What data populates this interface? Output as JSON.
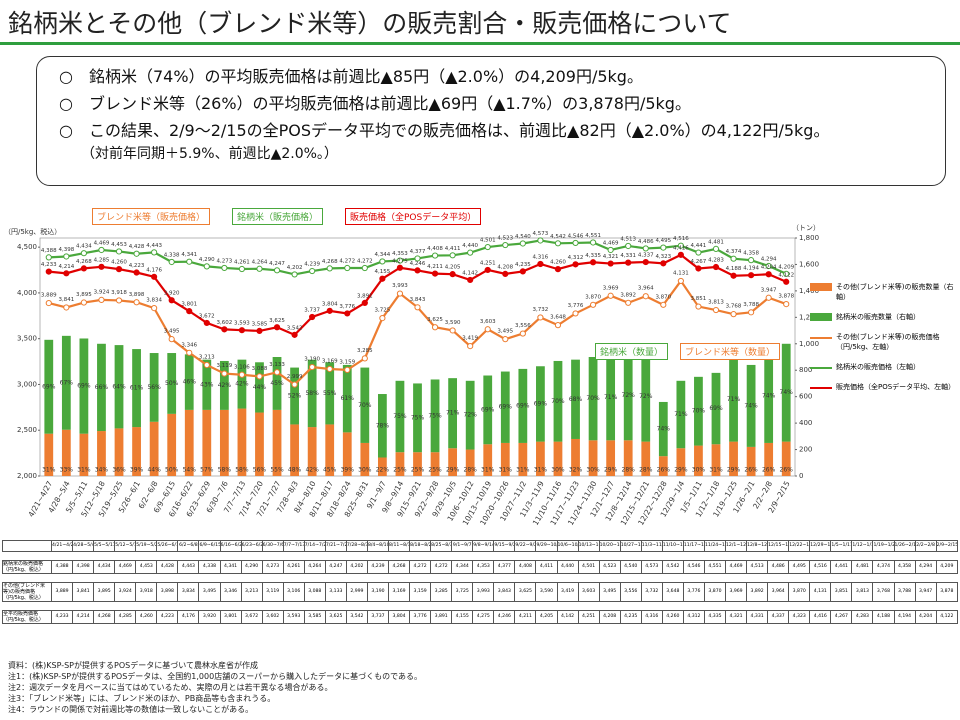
{
  "header": {
    "title": "銘柄米とその他（ブレンド米等）の販売割合・販売価格について"
  },
  "bullets": [
    "○　銘柄米（74%）の平均販売価格は前週比▲85円（▲2.0%）の4,209円/5kg。",
    "○　ブレンド米等（26%）の平均販売価格は前週比▲69円（▲1.7%）の3,878円/5kg。",
    "○　この結果、2/9～2/15の全POSデータ平均での販売価格は、前週比▲82円（▲2.0%）の4,122円/5kg。"
  ],
  "bullet_sub": "（対前年同期＋5.9%、前週比▲2.0%。）",
  "chart_data": {
    "type": "combo",
    "y_label": "（円/5kg、税込）",
    "y2_label": "（トン）",
    "categories": [
      "4/21~4/27",
      "4/28~5/4",
      "5/5~5/11",
      "5/12~5/18",
      "5/19~5/25",
      "5/26~6/1",
      "6/2~6/8",
      "6/9~6/15",
      "6/16~6/22",
      "6/23~6/29",
      "6/30~7/6",
      "7/7~7/13",
      "7/14~7/20",
      "7/21~7/27",
      "7/28~8/3",
      "8/4~8/10",
      "8/11~8/17",
      "8/18~8/24",
      "8/25~8/31",
      "9/1~9/7",
      "9/8~9/14",
      "9/15~9/21",
      "9/22~9/28",
      "9/29~10/5",
      "10/6~10/12",
      "10/13~10/19",
      "10/20~10/26",
      "10/27~11/2",
      "11/3~11/9",
      "11/10~11/16",
      "11/17~11/23",
      "11/24~11/30",
      "12/1~12/7",
      "12/8~12/14",
      "12/15~12/21",
      "12/22~12/28",
      "12/29~1/4",
      "1/5~1/11",
      "1/12~1/18",
      "1/19~1/25",
      "1/26~2/1",
      "2/2~2/8",
      "2/9~2/15"
    ],
    "ylim": [
      2000,
      4600
    ],
    "yticks": [
      {
        "value": 2000,
        "label": "2,000"
      },
      {
        "value": 2500,
        "label": "2,500"
      },
      {
        "value": 3000,
        "label": "3,000"
      },
      {
        "value": 3500,
        "label": "3,500"
      },
      {
        "value": 4000,
        "label": "4,000"
      },
      {
        "value": 4500,
        "label": "4,500"
      }
    ],
    "y2lim": [
      0,
      1800
    ],
    "y2ticks": [
      0,
      200,
      400,
      600,
      800,
      {
        "value": 1000,
        "label": "1,000"
      },
      {
        "value": 1200,
        "label": "1,200"
      },
      {
        "value": 1400,
        "label": "1,400"
      },
      {
        "value": 1600,
        "label": "1,600"
      },
      {
        "value": 1800,
        "label": "1,800"
      }
    ],
    "series": [
      {
        "name": "その他(ブレンド米等)の販売数量（右軸）",
        "type": "bar",
        "axis": "y2",
        "color": "#ed7d31",
        "values": [
          320,
          350,
          320,
          340,
          360,
          370,
          410,
          470,
          500,
          500,
          500,
          510,
          480,
          500,
          390,
          370,
          390,
          330,
          250,
          140,
          180,
          180,
          180,
          210,
          200,
          240,
          250,
          250,
          260,
          260,
          280,
          270,
          270,
          270,
          260,
          150,
          210,
          230,
          240,
          260,
          220,
          250,
          260
        ],
        "share_labels": [
          "31%",
          "33%",
          "31%",
          "34%",
          "36%",
          "39%",
          "44%",
          "50%",
          "54%",
          "57%",
          "58%",
          "58%",
          "56%",
          "55%",
          "48%",
          "42%",
          "45%",
          "39%",
          "30%",
          "22%",
          "25%",
          "25%",
          "25%",
          "29%",
          "28%",
          "31%",
          "31%",
          "31%",
          "31%",
          "30%",
          "32%",
          "30%",
          "29%",
          "28%",
          "28%",
          "26%",
          "29%",
          "30%",
          "31%",
          "29%",
          "26%",
          "26%",
          "26%"
        ]
      },
      {
        "name": "銘柄米の販売数量（右軸）",
        "type": "bar",
        "axis": "y2",
        "color": "#4aa83c",
        "values": [
          710,
          710,
          720,
          660,
          630,
          590,
          520,
          460,
          420,
          380,
          370,
          370,
          380,
          400,
          430,
          510,
          470,
          510,
          570,
          480,
          540,
          520,
          550,
          530,
          520,
          520,
          540,
          560,
          570,
          610,
          600,
          630,
          650,
          680,
          680,
          410,
          510,
          520,
          540,
          640,
          620,
          710,
          740
        ],
        "share_labels": [
          "69%",
          "67%",
          "69%",
          "66%",
          "64%",
          "61%",
          "56%",
          "50%",
          "46%",
          "43%",
          "42%",
          "42%",
          "44%",
          "45%",
          "52%",
          "58%",
          "55%",
          "61%",
          "70%",
          "78%",
          "75%",
          "75%",
          "75%",
          "71%",
          "72%",
          "69%",
          "69%",
          "69%",
          "69%",
          "70%",
          "68%",
          "70%",
          "71%",
          "72%",
          "72%",
          "74%",
          "71%",
          "70%",
          "69%",
          "71%",
          "74%",
          "74%",
          "74%"
        ]
      },
      {
        "name": "その他(ブレンド米等)の販売価格（円/5kg、左軸）",
        "type": "line",
        "color": "#ed7d31",
        "values": [
          3889,
          3841,
          3895,
          3924,
          3918,
          3898,
          3834,
          3495,
          3346,
          3213,
          3119,
          3106,
          3088,
          3133,
          2999,
          3190,
          3169,
          3159,
          3285,
          3725,
          3993,
          3843,
          3625,
          3590,
          3419,
          3603,
          3495,
          3556,
          3732,
          3648,
          3776,
          3870,
          3969,
          3892,
          3964,
          3870,
          4131,
          3851,
          3813,
          3768,
          3788,
          3947,
          3878
        ],
        "value_labels": [
          "3,889",
          "3,841",
          "3,895",
          "3,924",
          "3,918",
          "3,898",
          "3,834",
          "3,495",
          "3,346",
          "3,213",
          "3,119",
          "3,106",
          "3,088",
          "3,133",
          "2,999",
          "3,190",
          "3,169",
          "3,159",
          "3,285",
          "3,725",
          "3,993",
          "3,843",
          "3,625",
          "3,590",
          "3,419",
          "3,603",
          "3,495",
          "3,556",
          "3,732",
          "3,648",
          "3,776",
          "3,870",
          "3,969",
          "3,892",
          "3,964",
          "3,870",
          "4,131",
          "3,851",
          "3,813",
          "3,768",
          "3,788",
          "3,947",
          "3,878"
        ]
      },
      {
        "name": "銘柄米の販売価格（左軸）",
        "type": "line",
        "color": "#4aa83c",
        "values": [
          4388,
          4398,
          4434,
          4469,
          4453,
          4428,
          4443,
          4338,
          4341,
          4290,
          4273,
          4261,
          4264,
          4247,
          4202,
          4239,
          4268,
          4272,
          4272,
          4344,
          4353,
          4377,
          4408,
          4411,
          4440,
          4501,
          4523,
          4540,
          4573,
          4542,
          4546,
          4551,
          4469,
          4513,
          4486,
          4495,
          4516,
          4441,
          4481,
          4374,
          4358,
          4294,
          4209
        ],
        "value_labels": [
          "4,388",
          "4,398",
          "4,434",
          "4,469",
          "4,453",
          "4,428",
          "4,443",
          "4,338",
          "4,341",
          "4,290",
          "4,273",
          "4,261",
          "4,264",
          "4,247",
          "4,202",
          "4,239",
          "4,268",
          "4,272",
          "4,272",
          "4,344",
          "4,353",
          "4,377",
          "4,408",
          "4,411",
          "4,440",
          "4,501",
          "4,523",
          "4,540",
          "4,573",
          "4,542",
          "4,546",
          "4,551",
          "4,469",
          "4,513",
          "4,486",
          "4,495",
          "4,516",
          "4,441",
          "4,481",
          "4,374",
          "4,358",
          "4,294",
          "4,209"
        ]
      },
      {
        "name": "販売価格（全POSデータ平均、左軸）",
        "type": "line",
        "color": "#e00000",
        "values": [
          4233,
          4214,
          4268,
          4285,
          4260,
          4223,
          4176,
          3920,
          3801,
          3672,
          3602,
          3593,
          3585,
          3625,
          3542,
          3737,
          3804,
          3776,
          3891,
          4155,
          4275,
          4246,
          4211,
          4205,
          4142,
          4251,
          4208,
          4235,
          4316,
          4260,
          4312,
          4335,
          4321,
          4331,
          4337,
          4323,
          4416,
          4267,
          4283,
          4188,
          4194,
          4204,
          4122
        ],
        "value_labels": [
          "4,233",
          "4,214",
          "4,268",
          "4,285",
          "4,260",
          "4,223",
          "4,176",
          "3,920",
          "3,801",
          "3,672",
          "3,602",
          "3,593",
          "3,585",
          "3,625",
          "3,542",
          "3,737",
          "3,804",
          "3,776",
          "3,891",
          "4,155",
          "4,275",
          "4,246",
          "4,211",
          "4,205",
          "4,142",
          "4,251",
          "4,208",
          "4,235",
          "4,316",
          "4,260",
          "4,312",
          "4,335",
          "4,321",
          "4,331",
          "4,337",
          "4,323",
          "4,416",
          "4,267",
          "4,283",
          "4,188",
          "4,194",
          "4,204",
          "4,122"
        ]
      }
    ],
    "callouts": [
      "ブレンド米等（販売価格）",
      "銘柄米（販売価格）",
      "販売価格（全POSデータ平均）",
      "銘柄米（数量）",
      "ブレンド米等（数量）"
    ]
  },
  "table": {
    "row_labels": [
      "銘柄米の販売価格（円/5kg、税込）",
      "その他(ブレンド米等)の販売価格（円/5kg、税込）",
      "全平均販売価格（円/5kg、税込）"
    ]
  },
  "notes": [
    "資料：(株)KSP-SPが提供するPOSデータに基づいて農林水産省が作成",
    "注1：(株)KSP-SPが提供するPOSデータは、全国約1,000店舗のスーパーから購入したデータに基づくものである。",
    "注2：週次データを月ベースに当てはめているため、実際の月とは若干異なる場合がある。",
    "注3：「ブレンド米等」には、ブレンド米のほか、PB商品等も含まれうる。",
    "注4：ラウンドの関係で対前週比等の数値は一致しないことがある。"
  ]
}
